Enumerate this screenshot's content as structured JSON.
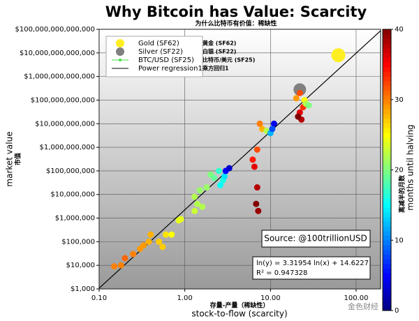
{
  "chart_data": {
    "type": "scatter",
    "title": "Why Bitcoin has Value: Scarcity",
    "subtitle": "为什么比特币有价值：稀缺性",
    "x_label": "stock-to-flow (scarcity)",
    "x_label_cn": "存量-产量（稀缺性）",
    "y_label": "market value",
    "y_label_cn": "市值",
    "x_log": true,
    "y_log": true,
    "grid": true,
    "xlim": [
      0.1,
      193
    ],
    "ylim": [
      1000,
      100000000000000
    ],
    "xticks": [
      {
        "value": 0.1,
        "label": "0.10"
      },
      {
        "value": 1,
        "label": "1.00"
      },
      {
        "value": 10,
        "label": "10.00"
      },
      {
        "value": 100,
        "label": "100.00"
      }
    ],
    "yticks": [
      {
        "value": 1000,
        "label": "$1,000"
      },
      {
        "value": 10000,
        "label": "$10,000"
      },
      {
        "value": 100000,
        "label": "$100,000"
      },
      {
        "value": 1000000,
        "label": "$1,000,000"
      },
      {
        "value": 10000000,
        "label": "$10,000,000"
      },
      {
        "value": 100000000,
        "label": "$100,000,000"
      },
      {
        "value": 1000000000,
        "label": "$1,000,000,000"
      },
      {
        "value": 10000000000,
        "label": "$10,000,000,000"
      },
      {
        "value": 100000000000,
        "label": "$100,000,000,000"
      },
      {
        "value": 1000000000000,
        "label": "$1,000,000,000,000"
      },
      {
        "value": 10000000000000,
        "label": "$10,000,000,000,000"
      },
      {
        "value": 100000000000000,
        "label": "$100,000,000,000,000"
      }
    ],
    "series": [
      {
        "name": "Gold (SF62)",
        "name_cn": "黄金 (SF62)",
        "color": "#ffee22",
        "x": [
          62
        ],
        "values": [
          8000000000000
        ]
      },
      {
        "name": "Silver (SF22)",
        "name_cn": "白银 (SF22)",
        "color": "#808080",
        "x": [
          22
        ],
        "values": [
          280000000000
        ]
      },
      {
        "name": "BTC/USD (SF25)",
        "name_cn": "比特币/美元 (SF25)",
        "color": "#44dd44",
        "x": [
          0.15,
          0.18,
          0.2,
          0.25,
          0.3,
          0.33,
          0.38,
          0.4,
          0.5,
          0.6,
          0.55,
          0.7,
          0.85,
          0.9,
          1.3,
          1.4,
          1.6,
          1.3,
          1.5,
          1.8,
          2.0,
          2.2,
          2.5,
          2.8,
          2.6,
          2.9,
          3.0,
          3.3,
          6.8,
          7.2,
          7.0,
          6.5,
          6.2,
          7.0,
          8.0,
          7.5,
          9.0,
          10,
          11,
          10.5,
          20,
          22,
          23,
          21,
          24,
          25,
          26,
          28,
          22
        ],
        "values": [
          9000,
          10000,
          20000,
          30000,
          50000,
          70000,
          100000,
          200000,
          100000,
          200000,
          60000,
          200000,
          800000,
          900000,
          2000000,
          4000000,
          3000000,
          8000000,
          15000000,
          20000000,
          70000000,
          50000000,
          100000000,
          40000000,
          25000000,
          60000000,
          100000000,
          130000000,
          4000000,
          2000000,
          20000000,
          150000000,
          300000000,
          800000000,
          6000000000,
          10000000000,
          5000000000,
          4000000000,
          10000000000,
          6000000000,
          120000000000,
          30000000000,
          15000000000,
          20000000000,
          50000000000,
          100000000000,
          70000000000,
          60000000000,
          200000000000
        ],
        "months": [
          30,
          30,
          31,
          30,
          29,
          29,
          28,
          28,
          27,
          26,
          27,
          25,
          24,
          24,
          23,
          22,
          22,
          22,
          21,
          21,
          20,
          19,
          17,
          16,
          15,
          14,
          5,
          3,
          40,
          39,
          38,
          36,
          34,
          32,
          28,
          30,
          22,
          12,
          4,
          8,
          29,
          36,
          38,
          40,
          33,
          25,
          22,
          20,
          32
        ]
      }
    ],
    "regression": {
      "name": "Power regression1",
      "name_cn": "乘方回归1",
      "slope": 3.31954,
      "intercept": 14.6227,
      "color": "#000000"
    },
    "equation": "ln(y) = 3.31954 ln(x) + 14.6227",
    "r_squared": "R² = 0.947328",
    "source": "Source: @100trillionUSD",
    "colorbar": {
      "label": "months until halving",
      "label_cn": "离减半的月数",
      "colormap": "jet",
      "lim": [
        0,
        40
      ],
      "ticks": [
        0,
        10,
        20,
        30,
        40
      ]
    },
    "watermark": "金色财经"
  }
}
